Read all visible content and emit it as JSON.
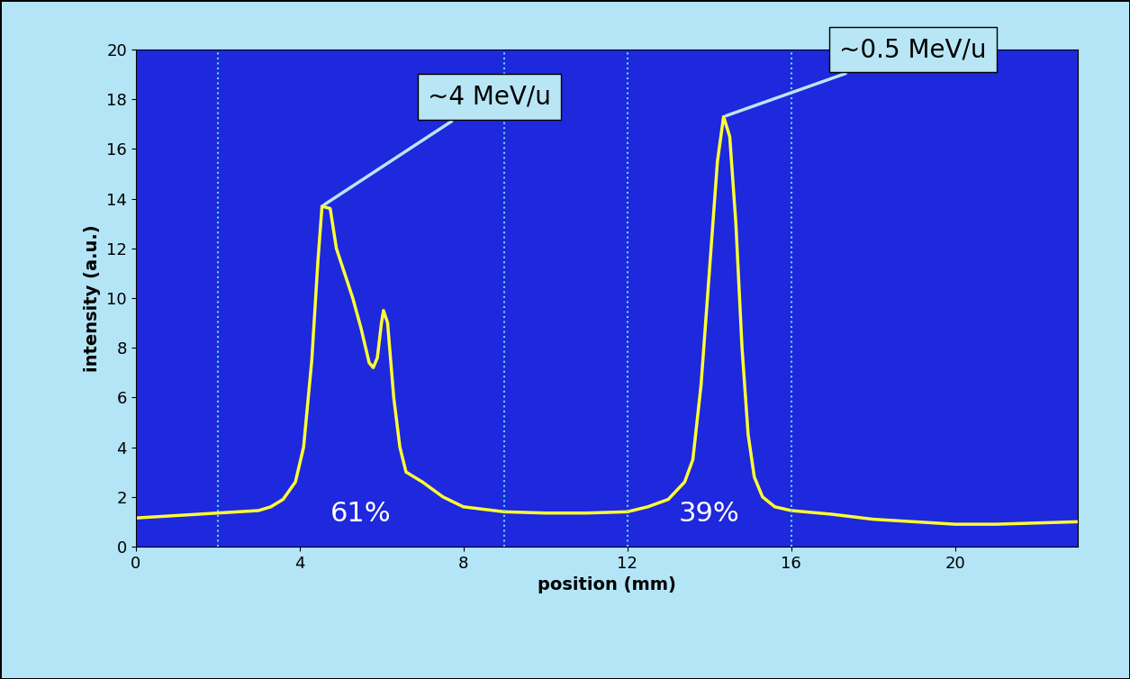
{
  "chart_data": {
    "type": "line",
    "xlabel": "position (mm)",
    "ylabel": "intensity (a.u.)",
    "x": [
      0,
      0.5,
      1,
      1.5,
      2,
      2.5,
      3,
      3.3,
      3.6,
      3.9,
      4.1,
      4.3,
      4.45,
      4.55,
      4.75,
      4.9,
      5.1,
      5.3,
      5.5,
      5.7,
      5.8,
      5.9,
      6.0,
      6.05,
      6.15,
      6.3,
      6.45,
      6.6,
      7,
      7.5,
      8,
      9,
      10,
      11,
      12,
      12.5,
      13,
      13.4,
      13.6,
      13.8,
      14.0,
      14.2,
      14.35,
      14.5,
      14.65,
      14.8,
      14.95,
      15.1,
      15.3,
      15.6,
      16,
      17,
      18,
      19,
      20,
      21,
      22,
      23
    ],
    "series": [
      {
        "color": "#ffff33",
        "line_style": "solid",
        "values": [
          1.15,
          1.2,
          1.25,
          1.3,
          1.35,
          1.4,
          1.45,
          1.6,
          1.9,
          2.6,
          4.0,
          7.5,
          11.5,
          13.7,
          13.6,
          12.0,
          11.0,
          10.0,
          8.8,
          7.4,
          7.2,
          7.6,
          9.0,
          9.5,
          9.0,
          6.0,
          4.0,
          3.0,
          2.6,
          2.0,
          1.6,
          1.4,
          1.35,
          1.35,
          1.4,
          1.6,
          1.9,
          2.6,
          3.5,
          6.5,
          11.0,
          15.5,
          17.3,
          16.5,
          13.0,
          8.0,
          4.5,
          2.8,
          2.0,
          1.6,
          1.45,
          1.3,
          1.1,
          1.0,
          0.9,
          0.9,
          0.95,
          1.0
        ]
      }
    ],
    "xlim": [
      0,
      23
    ],
    "xticks": [
      0,
      4,
      8,
      12,
      16,
      20
    ],
    "ylim": [
      0,
      20
    ],
    "yticks": [
      0,
      2,
      4,
      6,
      8,
      10,
      12,
      14,
      16,
      18,
      20
    ],
    "grid": false,
    "boundaries": [
      2,
      9,
      12,
      16
    ],
    "regions": [
      {
        "x": [
          2,
          9
        ],
        "value": 61,
        "label": "61%"
      },
      {
        "x": [
          12,
          16
        ],
        "value": 39,
        "label": "39%"
      }
    ],
    "annotations": [
      {
        "text": "~4 MeV/u",
        "x": 4.55,
        "y": 13.7
      },
      {
        "text": "~0.5 MeV/u",
        "x": 14.35,
        "y": 17.3
      }
    ]
  }
}
